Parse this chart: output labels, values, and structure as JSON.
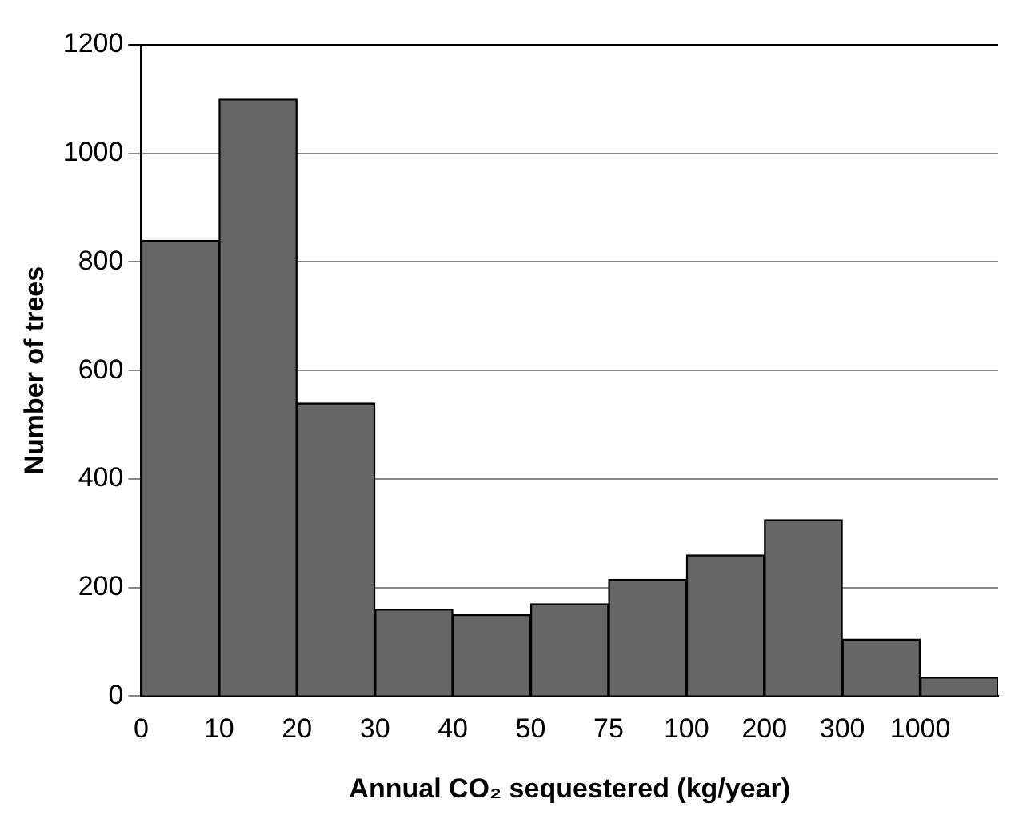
{
  "chart_data": {
    "type": "bar",
    "xlabel": "Annual CO₂ sequestered (kg/year)",
    "ylabel": "Number of trees",
    "categories": [
      "0",
      "10",
      "20",
      "30",
      "40",
      "50",
      "75",
      "100",
      "200",
      "300",
      "1000"
    ],
    "values": [
      840,
      1100,
      540,
      160,
      150,
      170,
      215,
      260,
      325,
      105,
      35
    ],
    "color": "#666666",
    "ylim": [
      0,
      1200
    ],
    "yticks": [
      0,
      200,
      400,
      600,
      800,
      1000,
      1200
    ],
    "grid": "y"
  }
}
